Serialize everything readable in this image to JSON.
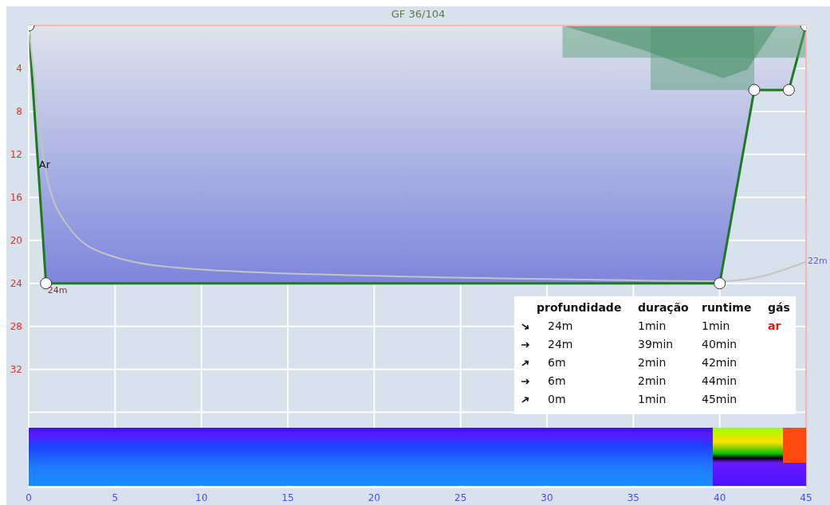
{
  "chart_data": {
    "type": "line",
    "title": "GF 36/104",
    "series": [
      {
        "type": "area",
        "color": "#1e7a1e",
        "x": [
          0,
          1,
          40,
          42,
          44,
          45
        ],
        "values": [
          0,
          24,
          24,
          6,
          6,
          0
        ],
        "marker": "circle"
      },
      {
        "color": "#c4c4c4",
        "x": [
          0,
          0.33,
          1,
          2.2,
          4.5,
          9,
          20,
          30,
          40,
          42,
          45
        ],
        "values": [
          0,
          5,
          13.7,
          18.5,
          21.3,
          22.6,
          23.3,
          23.6,
          23.8,
          23.5,
          22
        ],
        "marker": "none"
      },
      {
        "type": "area",
        "color": "#5e9f7c",
        "x": [
          30.9,
          45
        ],
        "values": [
          3,
          3
        ],
        "marker": "none"
      },
      {
        "type": "area",
        "color": "#5e9f7c",
        "x": [
          36,
          42
        ],
        "values": [
          6,
          6
        ],
        "marker": "none"
      },
      {
        "type": "area",
        "color": "#3f8a60",
        "x": [
          30.9,
          35.6,
          38,
          40.2,
          41.6,
          43.3,
          45
        ],
        "values": [
          0,
          2.3,
          3.7,
          4.9,
          4.1,
          0,
          0
        ],
        "marker": "none"
      }
    ],
    "xlim": [
      0,
      45
    ],
    "xticks": [
      0,
      5,
      10,
      15,
      20,
      25,
      30,
      35,
      40,
      45
    ],
    "ylim": [
      43,
      0
    ],
    "yticks": [
      4,
      8,
      12,
      16,
      20,
      24,
      28,
      32,
      {
        "value": 36,
        "label": null
      }
    ],
    "grid": true,
    "line_style": "solid",
    "ref_lines": [
      {
        "axis": "y",
        "value": 0,
        "color": "#ffb0b0"
      },
      {
        "axis": "x",
        "value": 45,
        "color": "#ffb0b0"
      }
    ],
    "annotations": [
      {
        "text": "Ar",
        "x": 0.5,
        "y": 13
      },
      {
        "text": "24m",
        "x": 1,
        "y": 24
      },
      {
        "text": "22m",
        "x": 45,
        "y": 22
      },
      "profundidade",
      "duração",
      "runtime",
      "gás",
      "24m",
      "1min",
      "1min",
      "24m",
      "39min",
      "40min",
      "6m",
      "2min",
      "42min",
      "6m",
      "2min",
      "44min",
      "0m",
      "1min",
      "45min",
      "ar"
    ]
  }
}
